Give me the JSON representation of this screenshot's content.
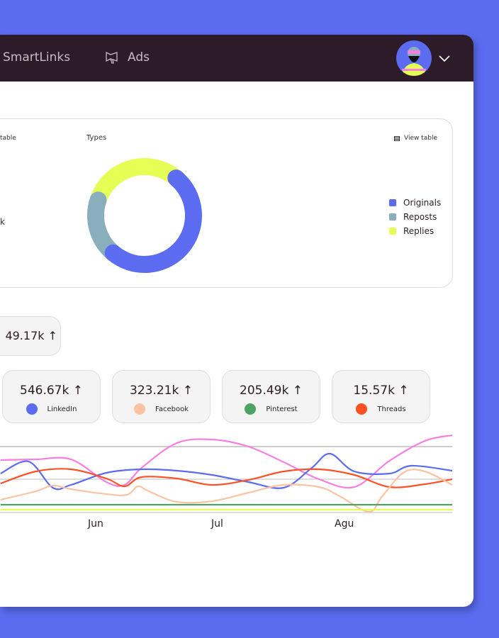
{
  "header": {
    "nav": [
      {
        "label": "SmartLinks"
      },
      {
        "label": "Ads",
        "icon": "megaphone-icon"
      }
    ],
    "avatar": "user-avatar",
    "menu_icon": "chevron-down-icon"
  },
  "left_card": {
    "view_table_partial": "table",
    "value_partial": "k"
  },
  "types_card": {
    "title": "Types",
    "view_table": "View table",
    "view_table_icon": "table-icon"
  },
  "total": {
    "value": "49.17k ↑"
  },
  "stats": [
    {
      "value": "546.67k ↑",
      "label": "LinkedIn",
      "color": "#5b6cf0"
    },
    {
      "value": "323.21k ↑",
      "label": "Facebook",
      "color": "#fcc3a3"
    },
    {
      "value": "205.49k ↑",
      "label": "Pinterest",
      "color": "#4fa266"
    },
    {
      "value": "15.57k ↑",
      "label": "Threads",
      "color": "#ff5026"
    }
  ],
  "chart_data": [
    {
      "type": "pie",
      "title": "Types",
      "categories": [
        "Originals",
        "Reposts",
        "Replies"
      ],
      "values": [
        50,
        19,
        31
      ],
      "colors": [
        "#5b6cf0",
        "#8aafbc",
        "#e6ff55"
      ],
      "legend": "right"
    },
    {
      "type": "line",
      "x_ticks": [
        "Jun",
        "Jul",
        "Agu"
      ],
      "x_unit": "month",
      "ylim": [
        0,
        110
      ],
      "grid": true,
      "series": [
        {
          "color": "#f77fe0",
          "points": [
            [
              5.2,
              73
            ],
            [
              5.49,
              74
            ],
            [
              5.78,
              74
            ],
            [
              6.07,
              42
            ],
            [
              6.22,
              38
            ],
            [
              6.36,
              62
            ],
            [
              6.65,
              97
            ],
            [
              6.94,
              102
            ],
            [
              7.24,
              92
            ],
            [
              7.53,
              70
            ],
            [
              7.82,
              46
            ],
            [
              8.11,
              35
            ],
            [
              8.4,
              72
            ],
            [
              8.69,
              100
            ],
            [
              8.92,
              108
            ]
          ]
        },
        {
          "color": "#5b6cf0",
          "points": [
            [
              5.2,
              54
            ],
            [
              5.43,
              71
            ],
            [
              5.63,
              34
            ],
            [
              5.78,
              38
            ],
            [
              6.07,
              55
            ],
            [
              6.36,
              60
            ],
            [
              6.65,
              58
            ],
            [
              6.94,
              52
            ],
            [
              7.24,
              42
            ],
            [
              7.53,
              34
            ],
            [
              7.76,
              62
            ],
            [
              7.91,
              82
            ],
            [
              8.11,
              57
            ],
            [
              8.4,
              54
            ],
            [
              8.58,
              65
            ],
            [
              8.92,
              58
            ]
          ]
        },
        {
          "color": "#ff5026",
          "points": [
            [
              5.2,
              40
            ],
            [
              5.49,
              57
            ],
            [
              5.78,
              60
            ],
            [
              6.07,
              47
            ],
            [
              6.22,
              36
            ],
            [
              6.36,
              49
            ],
            [
              6.65,
              47
            ],
            [
              6.94,
              38
            ],
            [
              7.24,
              45
            ],
            [
              7.53,
              57
            ],
            [
              7.82,
              60
            ],
            [
              8.11,
              52
            ],
            [
              8.4,
              35
            ],
            [
              8.69,
              39
            ],
            [
              8.92,
              46
            ]
          ]
        },
        {
          "color": "#fcc3a3",
          "points": [
            [
              5.2,
              17
            ],
            [
              5.49,
              29
            ],
            [
              5.63,
              37
            ],
            [
              5.78,
              32
            ],
            [
              6.07,
              25
            ],
            [
              6.24,
              24
            ],
            [
              6.33,
              36
            ],
            [
              6.42,
              29
            ],
            [
              6.65,
              14
            ],
            [
              6.94,
              15
            ],
            [
              7.24,
              27
            ],
            [
              7.53,
              38
            ],
            [
              7.82,
              35
            ],
            [
              7.99,
              22
            ],
            [
              8.23,
              0
            ],
            [
              8.34,
              22
            ],
            [
              8.52,
              56
            ],
            [
              8.69,
              57
            ],
            [
              8.92,
              38
            ]
          ]
        },
        {
          "color": "#4fa266",
          "points": [
            [
              5.2,
              10
            ],
            [
              8.92,
              10
            ]
          ]
        },
        {
          "color": "#e6ff55",
          "points": [
            [
              5.2,
              3
            ],
            [
              8.92,
              3
            ]
          ]
        }
      ]
    }
  ]
}
